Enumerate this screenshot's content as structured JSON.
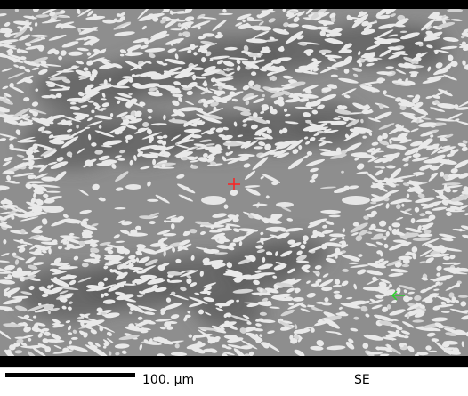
{
  "image": {
    "description_type": "SEM micrograph of eutectic lamellar microstructure",
    "markers": [
      {
        "name": "red-cross-marker",
        "color": "#ff2020"
      },
      {
        "name": "green-arrow-marker",
        "color": "#2bd12b"
      }
    ]
  },
  "databar": {
    "scale_label": "100. µm",
    "detector_label": "SE"
  },
  "colors": {
    "matrix": "#8c8c8c",
    "lamellae": "#e9e9e9",
    "dark_colony": "#5d5d5d",
    "frame": "#000000"
  }
}
